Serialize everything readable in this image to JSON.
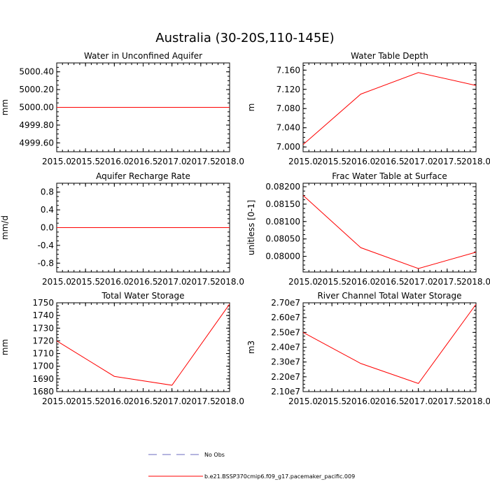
{
  "title": "Australia (30-20S,110-145E)",
  "legend": [
    {
      "label": "No Obs",
      "color": "#6b6bbf",
      "dash": true
    },
    {
      "label": "b.e21.BSSP370cmip6.f09_g17.pacemaker_pacific.009",
      "color": "#ff0000",
      "dash": false
    }
  ],
  "chart_data": [
    {
      "type": "line",
      "title": "Water in Unconfined Aquifer",
      "ylabel": "mm",
      "xlim": [
        2015.0,
        2018.0
      ],
      "xticks": [
        "2015.0",
        "2015.5",
        "2016.0",
        "2016.5",
        "2017.0",
        "2017.5",
        "2018.0"
      ],
      "ylim": [
        4999.5,
        5000.5
      ],
      "yticks": [
        "4999.60",
        "4999.80",
        "5000.00",
        "5000.20",
        "5000.40"
      ],
      "ytick_values": [
        4999.6,
        4999.8,
        5000.0,
        5000.2,
        5000.4
      ],
      "series": [
        {
          "color": "#ff0000",
          "x": [
            2015.0,
            2016.0,
            2017.0,
            2018.0
          ],
          "y": [
            5000.0,
            5000.0,
            5000.0,
            5000.0
          ]
        }
      ]
    },
    {
      "type": "line",
      "title": "Water Table Depth",
      "ylabel": "m",
      "xlim": [
        2015.0,
        2018.0
      ],
      "xticks": [
        "2015.0",
        "2015.5",
        "2016.0",
        "2016.5",
        "2017.0",
        "2017.5",
        "2018.0"
      ],
      "ylim": [
        6.99,
        7.175
      ],
      "yticks": [
        "7.000",
        "7.040",
        "7.080",
        "7.120",
        "7.160"
      ],
      "ytick_values": [
        7.0,
        7.04,
        7.08,
        7.12,
        7.16
      ],
      "series": [
        {
          "color": "#ff0000",
          "x": [
            2015.0,
            2016.0,
            2017.0,
            2018.0
          ],
          "y": [
            7.005,
            7.11,
            7.155,
            7.128
          ]
        }
      ]
    },
    {
      "type": "line",
      "title": "Aquifer Recharge Rate",
      "ylabel": "mm/d",
      "xlim": [
        2015.0,
        2018.0
      ],
      "xticks": [
        "2015.0",
        "2015.5",
        "2016.0",
        "2016.5",
        "2017.0",
        "2017.5",
        "2018.0"
      ],
      "ylim": [
        -1.0,
        1.0
      ],
      "yticks": [
        "-0.8",
        "-0.4",
        "0.0",
        "0.4",
        "0.8"
      ],
      "ytick_values": [
        -0.8,
        -0.4,
        0.0,
        0.4,
        0.8
      ],
      "series": [
        {
          "color": "#ff0000",
          "x": [
            2015.0,
            2016.0,
            2017.0,
            2018.0
          ],
          "y": [
            0.0,
            0.0,
            0.0,
            0.0
          ]
        }
      ]
    },
    {
      "type": "line",
      "title": "Frac Water Table at Surface",
      "ylabel": "unitless [0-1]",
      "xlim": [
        2015.0,
        2018.0
      ],
      "xticks": [
        "2015.0",
        "2015.5",
        "2016.0",
        "2016.5",
        "2017.0",
        "2017.5",
        "2018.0"
      ],
      "ylim": [
        0.07955,
        0.0821
      ],
      "yticks": [
        "0.08000",
        "0.08050",
        "0.08100",
        "0.08150",
        "0.08200"
      ],
      "ytick_values": [
        0.08,
        0.0805,
        0.081,
        0.0815,
        0.082
      ],
      "series": [
        {
          "color": "#ff0000",
          "x": [
            2015.0,
            2016.0,
            2017.0,
            2018.0
          ],
          "y": [
            0.08175,
            0.08025,
            0.07965,
            0.08012
          ]
        }
      ]
    },
    {
      "type": "line",
      "title": "Total Water Storage",
      "ylabel": "mm",
      "xlim": [
        2015.0,
        2018.0
      ],
      "xticks": [
        "2015.0",
        "2015.5",
        "2016.0",
        "2016.5",
        "2017.0",
        "2017.5",
        "2018.0"
      ],
      "ylim": [
        1680,
        1750
      ],
      "yticks": [
        "1680",
        "1690",
        "1700",
        "1710",
        "1720",
        "1730",
        "1740",
        "1750"
      ],
      "ytick_values": [
        1680,
        1690,
        1700,
        1710,
        1720,
        1730,
        1740,
        1750
      ],
      "series": [
        {
          "color": "#ff0000",
          "x": [
            2015.0,
            2016.0,
            2017.0,
            2018.0
          ],
          "y": [
            1720,
            1692,
            1685,
            1749
          ]
        }
      ]
    },
    {
      "type": "line",
      "title": "River Channel Total Water Storage",
      "ylabel": "m3",
      "xlim": [
        2015.0,
        2018.0
      ],
      "xticks": [
        "2015.0",
        "2015.5",
        "2016.0",
        "2016.5",
        "2017.0",
        "2017.5",
        "2018.0"
      ],
      "ylim": [
        21000000,
        27000000
      ],
      "yticks": [
        "2.10e7",
        "2.20e7",
        "2.30e7",
        "2.40e7",
        "2.50e7",
        "2.60e7",
        "2.70e7"
      ],
      "ytick_values": [
        21000000,
        22000000,
        23000000,
        24000000,
        25000000,
        26000000,
        27000000
      ],
      "series": [
        {
          "color": "#ff0000",
          "x": [
            2015.0,
            2016.0,
            2017.0,
            2018.0
          ],
          "y": [
            25000000,
            22900000,
            21550000,
            26900000
          ]
        }
      ]
    }
  ]
}
